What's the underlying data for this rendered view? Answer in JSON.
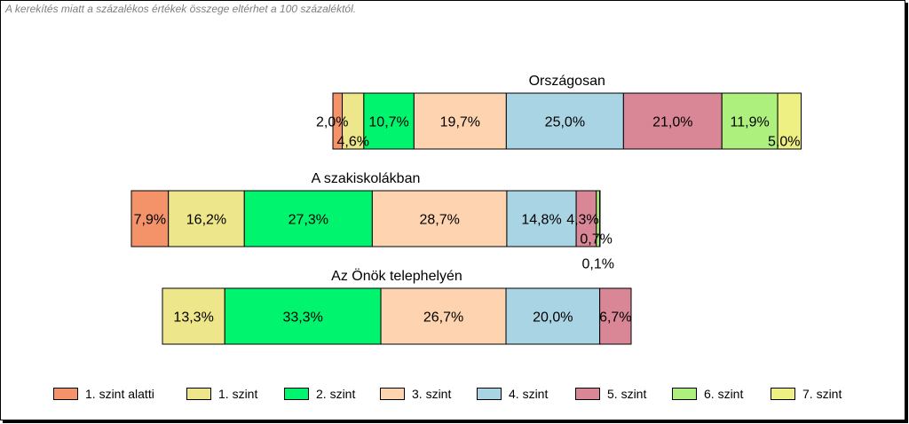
{
  "note": "A kerekítés miatt a  százalékos értékek összege eltérhet a 100 százaléktól.",
  "chart_data": {
    "type": "bar",
    "orientation": "horizontal-stacked",
    "bars": [
      {
        "title": "Országosan",
        "values": [
          2.0,
          4.6,
          10.7,
          19.7,
          25.0,
          21.0,
          11.9,
          5.0
        ],
        "labels": [
          "2,0%",
          "4,6%",
          "10,7%",
          "19,7%",
          "25,0%",
          "21,0%",
          "11,9%",
          "5,0%"
        ]
      },
      {
        "title": "A szakiskolákban",
        "values": [
          7.9,
          16.2,
          27.3,
          28.7,
          14.8,
          4.3,
          0.7,
          0.1
        ],
        "labels": [
          "7,9%",
          "16,2%",
          "27,3%",
          "28,7%",
          "14,8%",
          "4,3%",
          "0,7%",
          "0,1%"
        ]
      },
      {
        "title": "Az Önök telephelyén",
        "values": [
          0,
          13.3,
          33.3,
          26.7,
          20.0,
          6.7,
          0,
          0
        ],
        "labels": [
          "",
          "13,3%",
          "33,3%",
          "26,7%",
          "20,0%",
          "6,7%",
          "",
          ""
        ]
      }
    ],
    "series": [
      {
        "name": "1. szint alatti",
        "color": "#f4926a"
      },
      {
        "name": "1. szint",
        "color": "#ede68a"
      },
      {
        "name": "2. szint",
        "color": "#00f46e"
      },
      {
        "name": "3. szint",
        "color": "#fdd3b0"
      },
      {
        "name": "4. szint",
        "color": "#a9d4e4"
      },
      {
        "name": "5. szint",
        "color": "#d98696"
      },
      {
        "name": "6. szint",
        "color": "#aef07e"
      },
      {
        "name": "7. szint",
        "color": "#eef083"
      }
    ],
    "legend_position": "bottom",
    "grid": false
  }
}
